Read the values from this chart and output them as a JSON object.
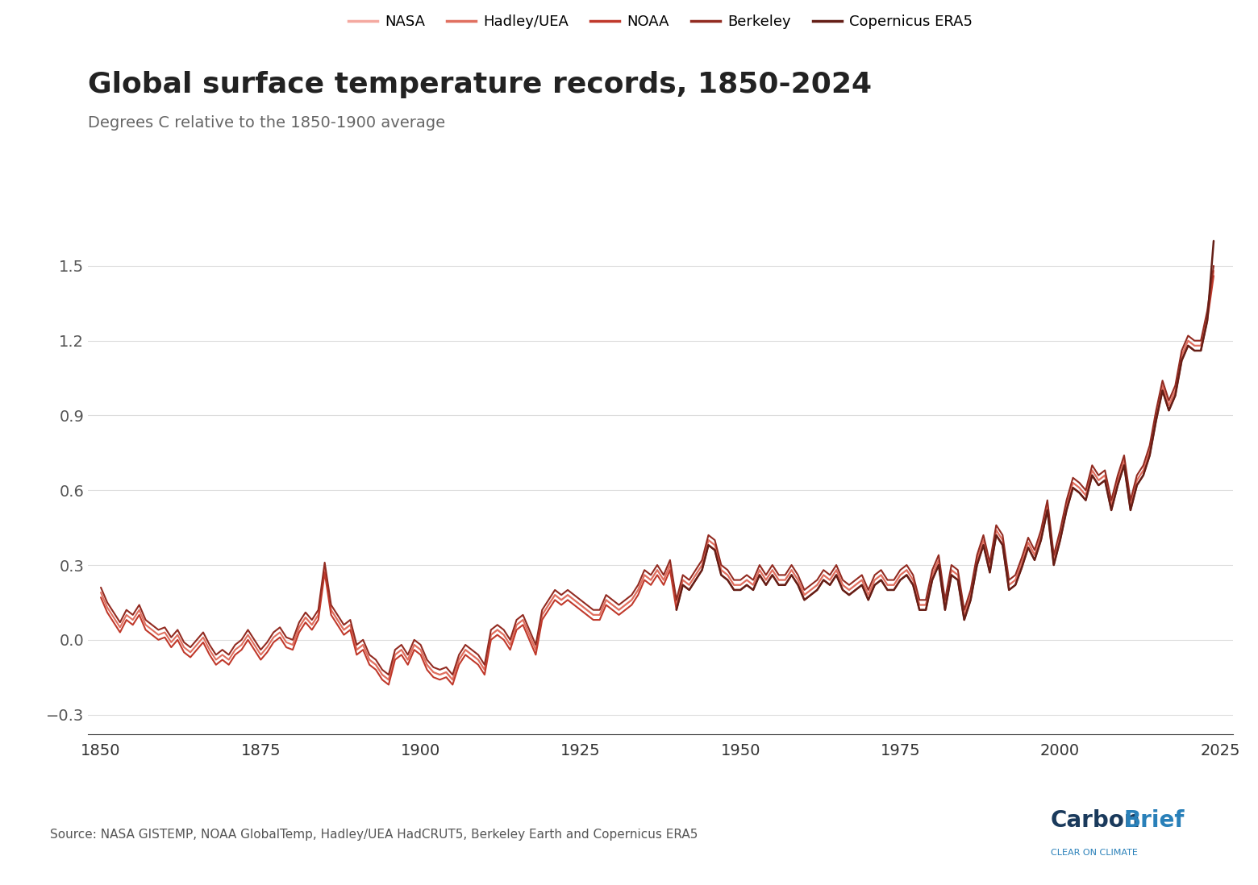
{
  "title": "Global surface temperature records, 1850-2024",
  "subtitle": "Degrees C relative to the 1850-1900 average",
  "source_text": "Source: NASA GISTEMP, NOAA GlobalTemp, Hadley/UEA HadCRUT5, Berkeley Earth and Copernicus ERA5",
  "series": {
    "NASA": {
      "color": "#f4a9a0",
      "linewidth": 1.5,
      "zorder": 2,
      "start_year": 1880
    },
    "Hadley/UEA": {
      "color": "#e07060",
      "linewidth": 1.5,
      "zorder": 3,
      "start_year": 1850
    },
    "NOAA": {
      "color": "#c0392b",
      "linewidth": 1.5,
      "zorder": 4,
      "start_year": 1850
    },
    "Berkeley": {
      "color": "#922b21",
      "linewidth": 1.5,
      "zorder": 5,
      "start_year": 1850
    },
    "Copernicus ERA5": {
      "color": "#641e16",
      "linewidth": 1.8,
      "zorder": 6,
      "start_year": 1940
    }
  },
  "xlim": [
    1848,
    2027
  ],
  "ylim": [
    -0.38,
    1.75
  ],
  "xticks": [
    1850,
    1875,
    1900,
    1925,
    1950,
    1975,
    2000,
    2025
  ],
  "yticks": [
    -0.3,
    0.0,
    0.3,
    0.6,
    0.9,
    1.2,
    1.5
  ],
  "background_color": "#ffffff",
  "grid_color": "#dddddd",
  "title_fontsize": 26,
  "subtitle_fontsize": 14,
  "tick_fontsize": 14,
  "legend_fontsize": 13,
  "source_fontsize": 11
}
